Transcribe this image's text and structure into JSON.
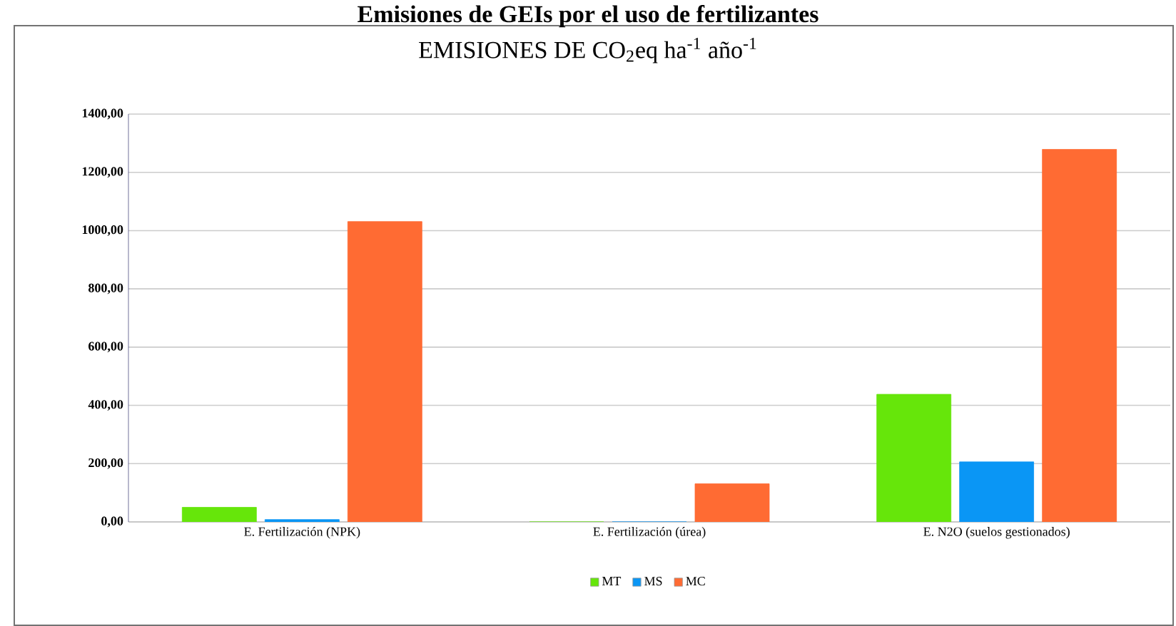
{
  "chart_data": {
    "type": "bar",
    "title": "Emisiones de GEIs por el uso de fertilizantes",
    "subtitle": "EMISIONES DE CO$_{2}$eq ha$^{-1}$ año$^{-1}$",
    "categories": [
      "E. Fertilización (NPK)",
      "E. Fertilización (úrea)",
      "E. N2O (suelos gestionados)"
    ],
    "series": [
      {
        "name": "MT",
        "color": "#66e60a",
        "values": [
          50,
          0,
          438
        ]
      },
      {
        "name": "MS",
        "color": "#0a96f5",
        "values": [
          8,
          0,
          206
        ]
      },
      {
        "name": "MC",
        "color": "#ff6b33",
        "values": [
          1031,
          131,
          1279
        ]
      }
    ],
    "ylim": [
      0,
      1400
    ],
    "yticks": [
      {
        "value": 0,
        "label": "0,00"
      },
      {
        "value": 200,
        "label": "200,00"
      },
      {
        "value": 400,
        "label": "400,00"
      },
      {
        "value": 600,
        "label": "600,00"
      },
      {
        "value": 800,
        "label": "800,00"
      },
      {
        "value": 1000,
        "label": "1000,00"
      },
      {
        "value": 1200,
        "label": "1200,00"
      },
      {
        "value": 1400,
        "label": "1400,00"
      }
    ],
    "grid": "y",
    "legend": "bottom"
  }
}
